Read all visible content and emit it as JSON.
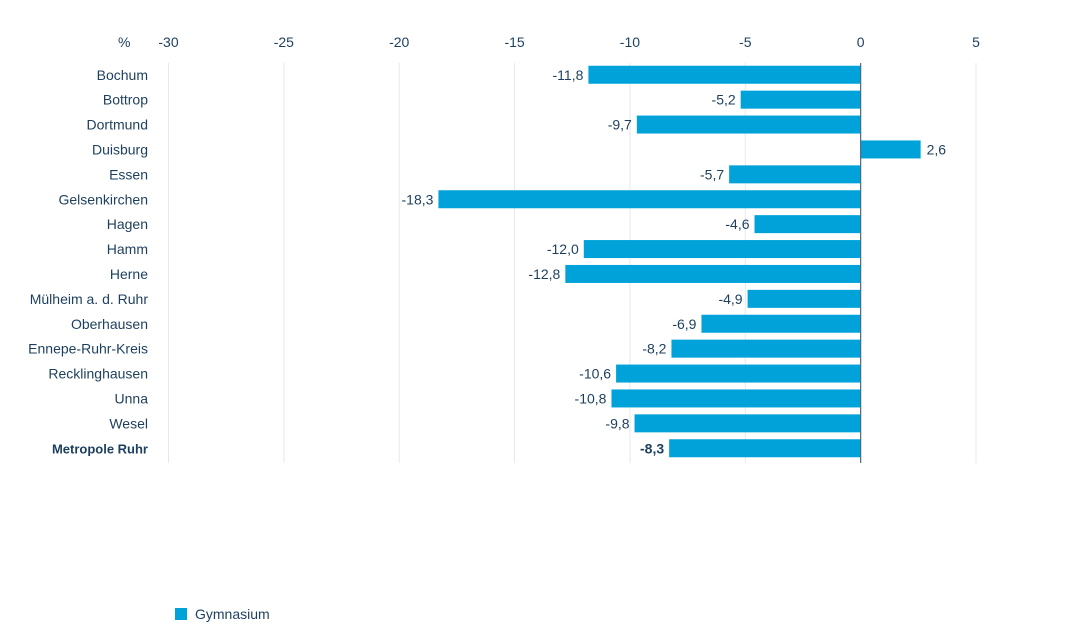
{
  "chart_data": {
    "type": "bar",
    "orientation": "horizontal",
    "unit_label": "%",
    "categories": [
      "Bochum",
      "Bottrop",
      "Dortmund",
      "Duisburg",
      "Essen",
      "Gelsenkirchen",
      "Hagen",
      "Hamm",
      "Herne",
      "Mülheim a. d. Ruhr",
      "Oberhausen",
      "Ennepe-Ruhr-Kreis",
      "Recklinghausen",
      "Unna",
      "Wesel",
      "Metropole Ruhr"
    ],
    "highlight_category": "Metropole Ruhr",
    "series": [
      {
        "name": "Gymnasium",
        "color": "#00a3d9",
        "values": [
          -11.8,
          -5.2,
          -9.7,
          2.6,
          -5.7,
          -18.3,
          -4.6,
          -12.0,
          -12.8,
          -4.9,
          -6.9,
          -8.2,
          -10.6,
          -10.8,
          -9.8,
          -8.3
        ],
        "value_labels": [
          "-11,8",
          "-5,2",
          "-9,7",
          "2,6",
          "-5,7",
          "-18,3",
          "-4,6",
          "-12,0",
          "-12,8",
          "-4,9",
          "-6,9",
          "-8,2",
          "-10,6",
          "-10,8",
          "-9,8",
          "-8,3"
        ]
      }
    ],
    "xlim": [
      -30,
      5
    ],
    "xticks": [
      -30,
      -25,
      -20,
      -15,
      -10,
      -5,
      0,
      5
    ],
    "xtick_labels": [
      "-30",
      "-25",
      "-20",
      "-15",
      "-10",
      "-5",
      "0",
      "5"
    ],
    "grid": true,
    "legend_position": "bottom-left"
  },
  "legend": {
    "label": "Gymnasium",
    "color": "#00a3d9"
  }
}
